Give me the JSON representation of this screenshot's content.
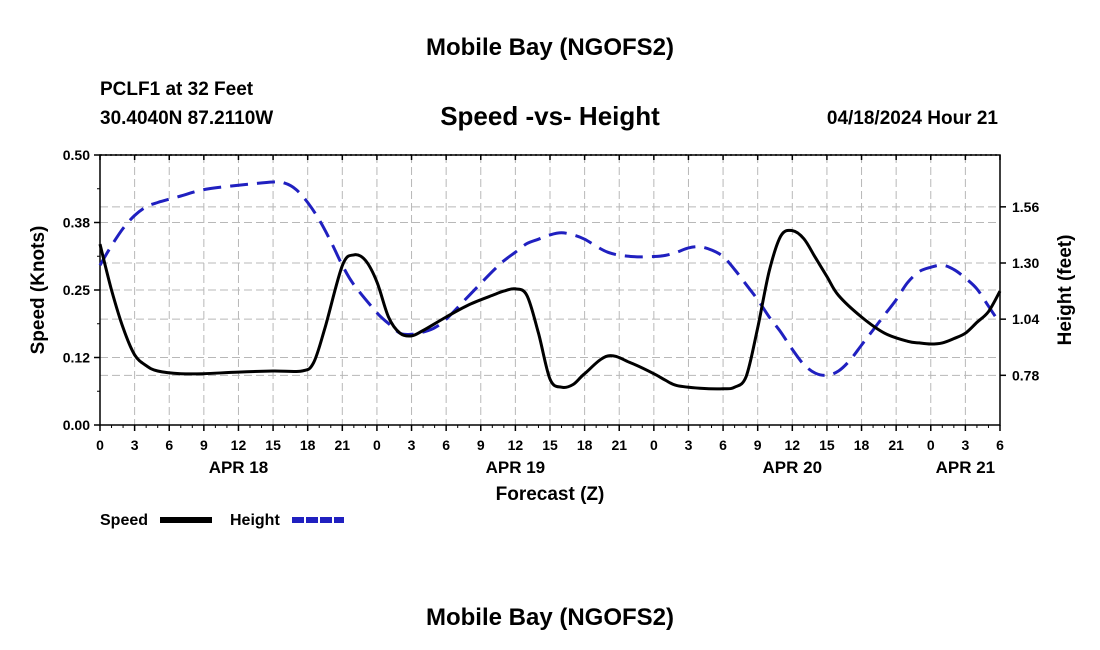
{
  "chart_data": {
    "type": "line",
    "title": "Mobile Bay (NGOFS2)",
    "footer_title": "Mobile Bay (NGOFS2)",
    "station": "PCLF1 at 32 Feet",
    "location": "30.4040N  87.2110W",
    "subtitle": "Speed -vs- Height",
    "timestamp": "04/18/2024 Hour 21",
    "xlabel": "Forecast (Z)",
    "ylabel_left": "Speed (Knots)",
    "ylabel_right": "Height (feet)",
    "x_range_hours": [
      0,
      78
    ],
    "x_tick_step_hours": 3,
    "x_tick_labels": [
      "0",
      "3",
      "6",
      "9",
      "12",
      "15",
      "18",
      "21",
      "0",
      "3",
      "6",
      "9",
      "12",
      "15",
      "18",
      "21",
      "0",
      "3",
      "6",
      "9",
      "12",
      "15",
      "18",
      "21",
      "0",
      "3",
      "6"
    ],
    "date_labels": [
      {
        "label": "APR 18",
        "hour": 12
      },
      {
        "label": "APR 19",
        "hour": 36
      },
      {
        "label": "APR 20",
        "hour": 60
      },
      {
        "label": "APR 21",
        "hour": 75
      }
    ],
    "ylim_left": [
      0.0,
      0.5
    ],
    "yticks_left": [
      "0.00",
      "0.12",
      "0.25",
      "0.38",
      "0.50"
    ],
    "yticks_left_values": [
      0.0,
      0.125,
      0.25,
      0.375,
      0.5
    ],
    "ylim_right": [
      0.55,
      1.8
    ],
    "yticks_right": [
      "0.78",
      "1.04",
      "1.30",
      "1.56"
    ],
    "yticks_right_values": [
      0.78,
      1.04,
      1.3,
      1.56
    ],
    "grid": true,
    "series": [
      {
        "name": "Speed",
        "axis": "left",
        "color": "#000000",
        "style": "solid",
        "x": [
          0,
          1,
          2,
          3,
          4,
          5,
          7,
          9,
          12,
          15,
          17.5,
          18.5,
          19.5,
          21,
          22,
          23,
          24,
          25,
          26,
          27,
          28,
          30,
          32,
          34,
          35,
          36,
          37,
          38,
          39,
          40,
          41,
          42,
          44,
          46,
          48,
          49,
          50,
          52,
          54,
          55,
          56,
          57,
          58,
          59,
          60,
          61,
          62,
          63,
          64,
          66,
          68,
          70,
          71,
          72,
          73,
          74,
          75,
          76,
          77,
          78
        ],
        "values": [
          0.335,
          0.25,
          0.18,
          0.13,
          0.11,
          0.1,
          0.095,
          0.095,
          0.098,
          0.1,
          0.1,
          0.115,
          0.18,
          0.295,
          0.315,
          0.305,
          0.265,
          0.2,
          0.17,
          0.165,
          0.175,
          0.2,
          0.223,
          0.24,
          0.248,
          0.252,
          0.24,
          0.17,
          0.085,
          0.07,
          0.075,
          0.095,
          0.128,
          0.115,
          0.095,
          0.083,
          0.073,
          0.068,
          0.067,
          0.07,
          0.09,
          0.18,
          0.285,
          0.35,
          0.36,
          0.345,
          0.31,
          0.275,
          0.24,
          0.2,
          0.17,
          0.155,
          0.152,
          0.15,
          0.152,
          0.16,
          0.17,
          0.19,
          0.21,
          0.248
        ]
      },
      {
        "name": "Height",
        "axis": "right",
        "color": "#2020c0",
        "style": "dashed",
        "x": [
          0,
          1,
          2,
          3,
          4,
          5,
          7,
          9,
          12,
          15,
          16,
          17,
          18,
          19,
          20,
          21,
          22,
          24,
          25,
          26,
          27,
          28,
          29,
          30,
          32,
          34,
          35,
          36,
          37,
          38,
          39,
          40,
          41,
          42,
          44,
          46,
          48,
          49,
          50,
          51,
          52,
          53,
          54,
          55,
          56,
          57,
          58,
          59,
          60,
          61,
          62,
          63,
          64,
          65,
          66,
          67,
          68,
          69,
          70,
          71,
          72,
          73,
          74,
          75,
          76,
          77,
          78
        ],
        "values": [
          1.29,
          1.38,
          1.46,
          1.52,
          1.56,
          1.58,
          1.61,
          1.64,
          1.66,
          1.675,
          1.67,
          1.64,
          1.58,
          1.5,
          1.4,
          1.29,
          1.2,
          1.07,
          1.02,
          0.975,
          0.97,
          0.98,
          1.0,
          1.04,
          1.15,
          1.26,
          1.31,
          1.35,
          1.39,
          1.41,
          1.43,
          1.44,
          1.43,
          1.41,
          1.35,
          1.33,
          1.33,
          1.335,
          1.35,
          1.37,
          1.375,
          1.36,
          1.33,
          1.27,
          1.2,
          1.13,
          1.05,
          0.98,
          0.9,
          0.83,
          0.79,
          0.78,
          0.8,
          0.85,
          0.92,
          0.99,
          1.06,
          1.13,
          1.21,
          1.26,
          1.28,
          1.29,
          1.27,
          1.23,
          1.18,
          1.1,
          1.02
        ]
      }
    ],
    "legend": [
      {
        "label": "Speed",
        "color": "#000000",
        "style": "solid"
      },
      {
        "label": "Height",
        "color": "#2020c0",
        "style": "dashed"
      }
    ]
  }
}
